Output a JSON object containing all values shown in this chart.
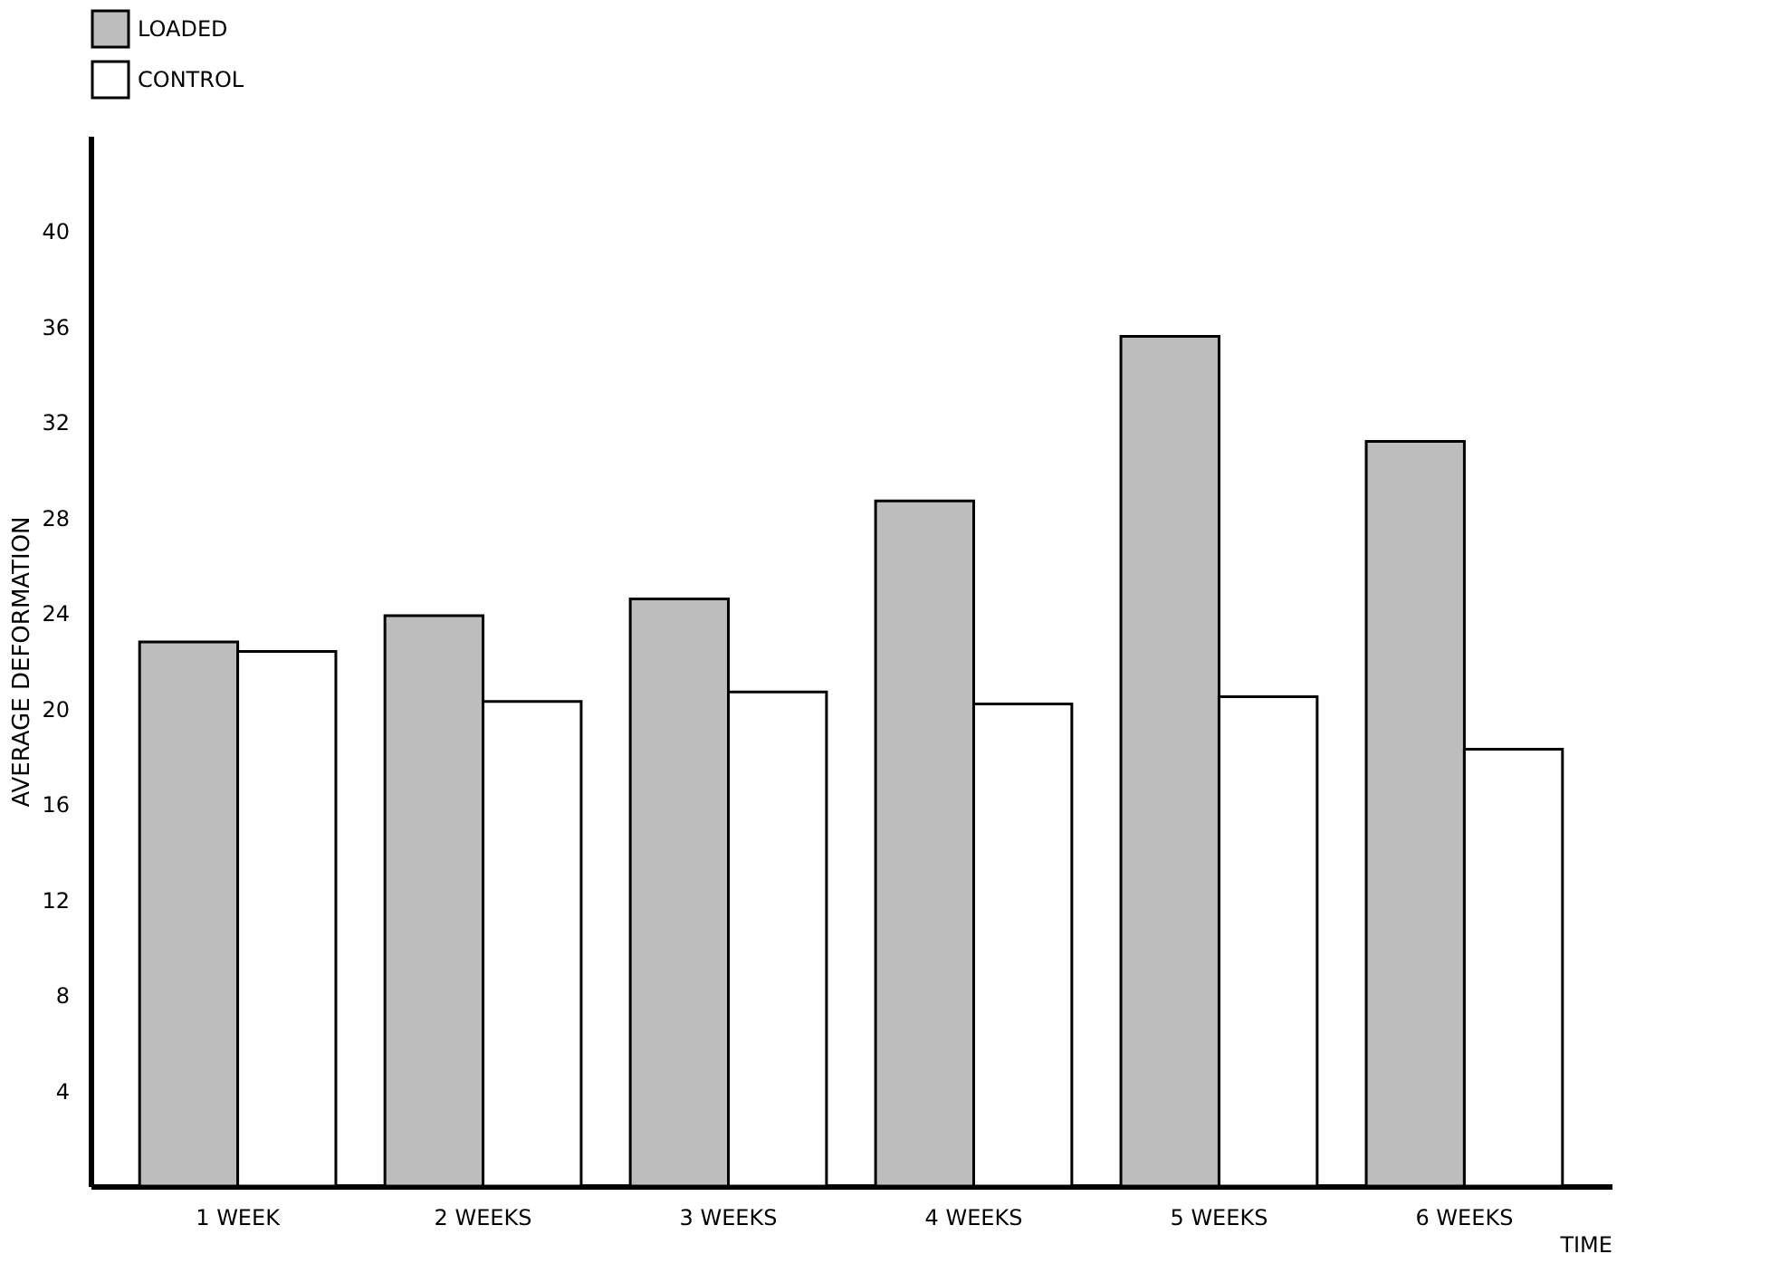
{
  "chart_data": {
    "type": "bar",
    "xlabel": "TIME",
    "ylabel": "AVERAGE DEFORMATION",
    "categories": [
      "1 WEEK",
      "2 WEEKS",
      "3 WEEKS",
      "4 WEEKS",
      "5 WEEKS",
      "6 WEEKS"
    ],
    "series": [
      {
        "name": "LOADED",
        "color": "#bdbdbd",
        "values": [
          22.8,
          23.9,
          24.6,
          28.7,
          35.6,
          31.2
        ]
      },
      {
        "name": "CONTROL",
        "color": "#ffffff",
        "values": [
          22.4,
          20.3,
          20.7,
          20.2,
          20.5,
          18.3
        ]
      }
    ],
    "ylim": [
      0,
      44
    ],
    "yticks": [
      4,
      8,
      12,
      16,
      20,
      24,
      28,
      32,
      36,
      40
    ],
    "grid": false,
    "legend": "top"
  }
}
